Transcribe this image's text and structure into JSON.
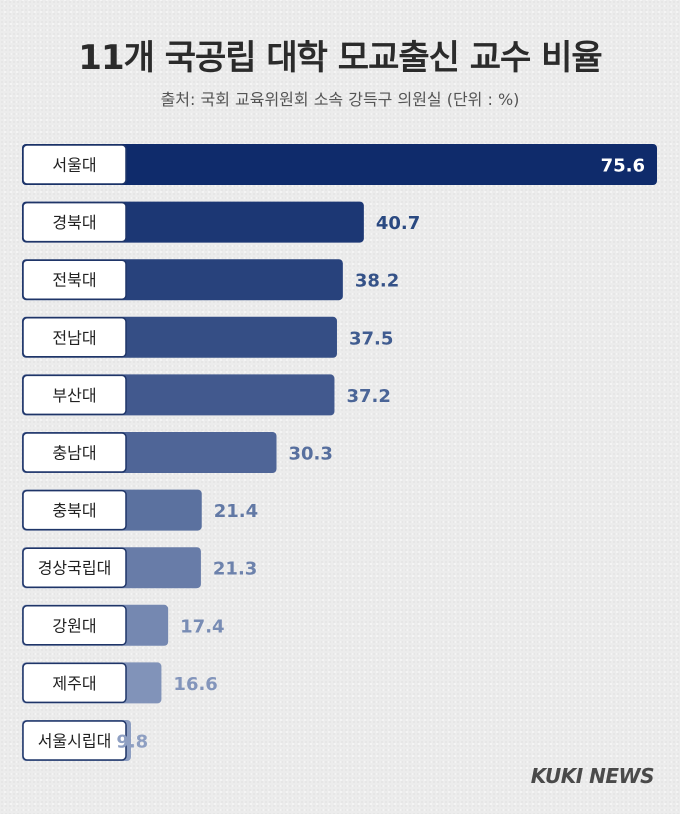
{
  "title": "11개 국공립 대학 모교출신 교수 비율",
  "subtitle": "출처: 국회 교육위원회 소속 강득구 의원실 (단위 : %)",
  "logo": "KUKI NEWS",
  "chart_data": {
    "type": "bar",
    "orientation": "horizontal",
    "title": "11개 국공립 대학 모교출신 교수 비율",
    "subtitle": "출처: 국회 교육위원회 소속 강득구 의원실 (단위 : %)",
    "categories": [
      "서울대",
      "경북대",
      "전북대",
      "전남대",
      "부산대",
      "충남대",
      "충북대",
      "경상국립대",
      "강원대",
      "제주대",
      "서울시립대"
    ],
    "values": [
      75.6,
      40.7,
      38.2,
      37.5,
      37.2,
      30.3,
      21.4,
      21.3,
      17.4,
      16.6,
      9.8
    ],
    "value_labels": [
      "75.6",
      "40.7",
      "38.2",
      "37.5",
      "37.2",
      "30.3",
      "21.4",
      "21.3",
      "17.4",
      "16.6",
      "9.8"
    ],
    "xlim": [
      0,
      75.6
    ],
    "grid": false,
    "colors": {
      "first_bar": "#0f2b6b",
      "last_bar": "#8e9fc2",
      "label_text_first": "#ffffff",
      "label_text_dark": "#1f3f7a",
      "label_text_light": "#8e9fc2",
      "label_box_fill": "#ffffff",
      "label_box_stroke": "#1f3568"
    }
  }
}
